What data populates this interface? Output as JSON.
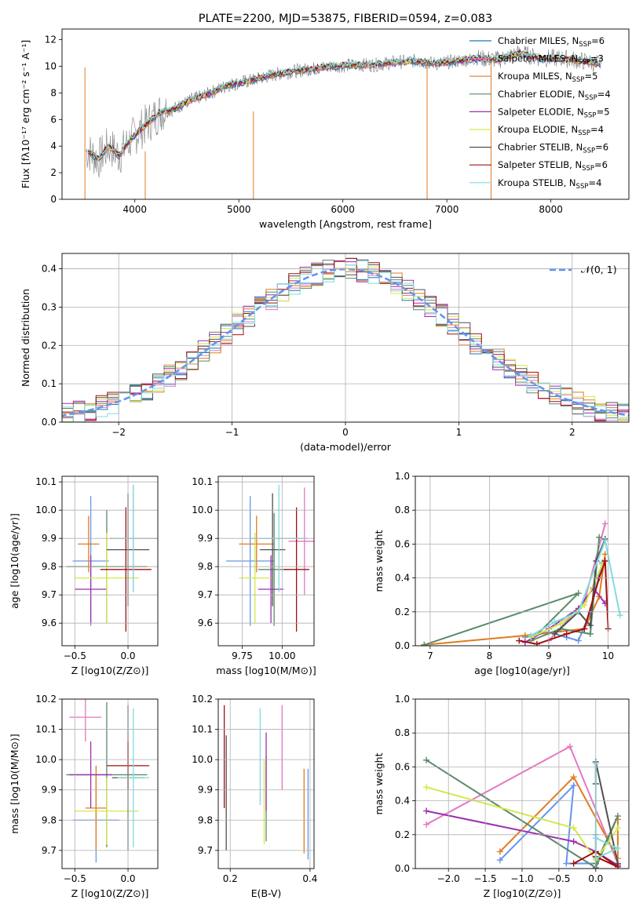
{
  "chart_data": [
    {
      "id": "spectrum",
      "type": "line",
      "title": "PLATE=2200, MJD=53875, FIBERID=0594, z=0.083",
      "xlabel": "wavelength [Angstrom, rest frame]",
      "ylabel": "Flux [fλ10⁻¹⁷ erg cm⁻² s⁻¹ A⁻¹]",
      "xlim": [
        3300,
        8750
      ],
      "ylim": [
        0,
        12.8
      ],
      "xticks": [
        4000,
        5000,
        6000,
        7000,
        8000
      ],
      "yticks": [
        0,
        2,
        4,
        6,
        8,
        10,
        12
      ],
      "legend_position": "top-right",
      "data_color": "#808080",
      "model_x": [
        3550,
        3650,
        3750,
        3850,
        3950,
        4050,
        4150,
        4250,
        4350,
        4450,
        4550,
        4700,
        4900,
        5100,
        5300,
        5500,
        5700,
        5900,
        6100,
        6300,
        6500,
        6700,
        6900,
        7100,
        7300,
        7500,
        7700,
        7900,
        8100,
        8300,
        8450
      ],
      "model_y": [
        3.6,
        3.0,
        4.0,
        3.3,
        4.4,
        5.2,
        5.9,
        6.6,
        6.7,
        7.1,
        7.5,
        7.9,
        8.6,
        8.9,
        9.3,
        9.6,
        9.8,
        10.0,
        10.1,
        10.1,
        10.3,
        10.4,
        10.2,
        10.4,
        10.6,
        10.5,
        11.0,
        10.6,
        10.6,
        10.4,
        10.2
      ],
      "series": [
        {
          "name": "Chabrier MILES, N_SSP=6",
          "name_prefix": "Chabrier MILES, N",
          "name_suffix": "=6",
          "color": "#1f77b4"
        },
        {
          "name": "Salpeter MILES, N_SSP=3",
          "name_prefix": "Salpeter MILES, N",
          "name_suffix": "=3",
          "color": "#e377c2"
        },
        {
          "name": "Kroupa MILES, N_SSP=5",
          "name_prefix": "Kroupa MILES, N",
          "name_suffix": "=5",
          "color": "#e07b20"
        },
        {
          "name": "Chabrier ELODIE, N_SSP=4",
          "name_prefix": "Chabrier ELODIE, N",
          "name_suffix": "=4",
          "color": "#5a8a6a"
        },
        {
          "name": "Salpeter ELODIE, N_SSP=5",
          "name_prefix": "Salpeter ELODIE, N",
          "name_suffix": "=5",
          "color": "#9c2fae"
        },
        {
          "name": "Kroupa ELODIE, N_SSP=4",
          "name_prefix": "Kroupa ELODIE, N",
          "name_suffix": "=4",
          "color": "#d4e84a"
        },
        {
          "name": "Chabrier STELIB, N_SSP=6",
          "name_prefix": "Chabrier STELIB, N",
          "name_suffix": "=6",
          "color": "#505050"
        },
        {
          "name": "Salpeter STELIB, N_SSP=6",
          "name_prefix": "Salpeter STELIB, N",
          "name_suffix": "=6",
          "color": "#a01010"
        },
        {
          "name": "Kroupa STELIB, N_SSP=4",
          "name_prefix": "Kroupa STELIB, N",
          "name_suffix": "=4",
          "color": "#80dce0"
        }
      ]
    },
    {
      "id": "residuals",
      "type": "line",
      "xlabel": "(data-model)/error",
      "ylabel": "Normed distribution",
      "xlim": [
        -2.5,
        2.5
      ],
      "ylim": [
        0,
        0.44
      ],
      "xticks": [
        -2,
        -1,
        0,
        1,
        2
      ],
      "yticks": [
        0.0,
        0.1,
        0.2,
        0.3,
        0.4
      ],
      "legend_label": "𝒩(0, 1)",
      "gaussian_color": "#6495ed",
      "bin_width": 0.1
    },
    {
      "id": "age_vs_Z",
      "type": "scatter",
      "xlabel": "Z [log10(Z/Z⊙)]",
      "ylabel": "age  [log10(age/yr)]",
      "xlim": [
        -0.62,
        0.28
      ],
      "ylim": [
        9.52,
        10.12
      ],
      "xticks": [
        -0.5,
        0.0
      ],
      "yticks": [
        9.6,
        9.7,
        9.8,
        9.9,
        10.0,
        10.1
      ],
      "points": [
        {
          "x": -0.35,
          "xerr": 0.17,
          "y": 9.82,
          "yerr": 0.23,
          "color": "#6495ed"
        },
        {
          "x": 0.05,
          "xerr": 0.22,
          "y": 9.9,
          "yerr": 0.19,
          "color": "#e377c2"
        },
        {
          "x": -0.37,
          "xerr": 0.1,
          "y": 9.88,
          "yerr": 0.1,
          "color": "#e07b20"
        },
        {
          "x": -0.2,
          "xerr": 0.38,
          "y": 9.8,
          "yerr": 0.2,
          "color": "#5a8a6a"
        },
        {
          "x": -0.35,
          "xerr": 0.15,
          "y": 9.72,
          "yerr": 0.12,
          "color": "#9c2fae"
        },
        {
          "x": -0.2,
          "xerr": 0.3,
          "y": 9.76,
          "yerr": 0.16,
          "color": "#d4e84a"
        },
        {
          "x": 0.0,
          "xerr": 0.2,
          "y": 9.86,
          "yerr": 0.2,
          "color": "#505050"
        },
        {
          "x": -0.02,
          "xerr": 0.24,
          "y": 9.79,
          "yerr": 0.22,
          "color": "#a01010"
        },
        {
          "x": 0.05,
          "xerr": 0.2,
          "y": 9.9,
          "yerr": 0.19,
          "color": "#80dce0"
        }
      ]
    },
    {
      "id": "age_vs_mass",
      "type": "scatter",
      "xlabel": "mass [log10(M/M⊙)]",
      "ylabel": "",
      "xlim": [
        9.6,
        10.2
      ],
      "ylim": [
        9.52,
        10.12
      ],
      "xticks": [
        9.75,
        10.0
      ],
      "yticks": [
        9.6,
        9.7,
        9.8,
        9.9,
        10.0,
        10.1
      ],
      "points": [
        {
          "x": 9.8,
          "xerr": 0.15,
          "y": 9.82,
          "yerr": 0.23,
          "color": "#6495ed"
        },
        {
          "x": 10.14,
          "xerr": 0.1,
          "y": 9.89,
          "yerr": 0.19,
          "color": "#e377c2"
        },
        {
          "x": 9.84,
          "xerr": 0.11,
          "y": 9.88,
          "yerr": 0.1,
          "color": "#e07b20"
        },
        {
          "x": 9.95,
          "xerr": 0.1,
          "y": 9.79,
          "yerr": 0.2,
          "color": "#5a8a6a"
        },
        {
          "x": 9.93,
          "xerr": 0.08,
          "y": 9.72,
          "yerr": 0.12,
          "color": "#9c2fae"
        },
        {
          "x": 9.83,
          "xerr": 0.1,
          "y": 9.76,
          "yerr": 0.16,
          "color": "#d4e84a"
        },
        {
          "x": 9.94,
          "xerr": 0.08,
          "y": 9.86,
          "yerr": 0.2,
          "color": "#505050"
        },
        {
          "x": 10.09,
          "xerr": 0.08,
          "y": 9.79,
          "yerr": 0.22,
          "color": "#a01010"
        },
        {
          "x": 9.98,
          "xerr": 0.18,
          "y": 9.9,
          "yerr": 0.19,
          "color": "#80dce0"
        }
      ]
    },
    {
      "id": "weight_vs_age",
      "type": "line",
      "xlabel": "age  [log10(age/yr)]",
      "ylabel": "mass weight",
      "xlim": [
        6.75,
        10.35
      ],
      "ylim": [
        0.0,
        1.0
      ],
      "xticks": [
        7,
        8,
        9,
        10
      ],
      "yticks": [
        0.0,
        0.2,
        0.4,
        0.6,
        0.8,
        1.0
      ],
      "series": [
        {
          "color": "#6495ed",
          "x": [
            8.6,
            9.0,
            9.3,
            9.5,
            9.7,
            9.9
          ],
          "y": [
            0.05,
            0.08,
            0.05,
            0.03,
            0.2,
            0.49
          ]
        },
        {
          "color": "#e377c2",
          "x": [
            9.0,
            9.6,
            9.95
          ],
          "y": [
            0.03,
            0.26,
            0.72
          ]
        },
        {
          "color": "#e07b20",
          "x": [
            6.9,
            8.6,
            9.6,
            9.85,
            9.95
          ],
          "y": [
            0.005,
            0.06,
            0.1,
            0.29,
            0.54
          ]
        },
        {
          "color": "#5a8a6a",
          "x": [
            6.9,
            9.5,
            8.7,
            9.2,
            9.7,
            9.85
          ],
          "y": [
            0.005,
            0.31,
            0.03,
            0.1,
            0.07,
            0.64
          ]
        },
        {
          "color": "#9c2fae",
          "x": [
            8.6,
            9.0,
            9.5,
            9.75,
            9.95
          ],
          "y": [
            0.02,
            0.1,
            0.22,
            0.34,
            0.25
          ]
        },
        {
          "color": "#d4e84a",
          "x": [
            8.7,
            9.2,
            9.6,
            9.9
          ],
          "y": [
            0.05,
            0.13,
            0.24,
            0.48
          ]
        },
        {
          "color": "#505050",
          "x": [
            9.1,
            9.5,
            9.7,
            9.8,
            9.95
          ],
          "y": [
            0.07,
            0.2,
            0.12,
            0.5,
            0.63
          ]
        },
        {
          "color": "#a01010",
          "x": [
            8.5,
            8.8,
            9.3,
            9.6,
            9.85,
            9.95,
            10.0
          ],
          "y": [
            0.03,
            0.01,
            0.07,
            0.1,
            0.4,
            0.5,
            0.1
          ]
        },
        {
          "color": "#80dce0",
          "x": [
            8.7,
            9.1,
            9.5,
            9.95,
            10.2
          ],
          "y": [
            0.06,
            0.14,
            0.2,
            0.62,
            0.18
          ]
        }
      ]
    },
    {
      "id": "mass_vs_Z",
      "type": "scatter",
      "xlabel": "Z [log10(Z/Z⊙)]",
      "ylabel": "mass [log10(M/M⊙)]",
      "xlim": [
        -0.62,
        0.28
      ],
      "ylim": [
        9.64,
        10.2
      ],
      "xticks": [
        -0.5,
        0.0
      ],
      "yticks": [
        9.7,
        9.8,
        9.9,
        10.0,
        10.1,
        10.2
      ],
      "points": [
        {
          "x": -0.3,
          "xerr": 0.22,
          "y": 9.8,
          "yerr": 0.14,
          "color": "#6495ed"
        },
        {
          "x": -0.4,
          "xerr": 0.15,
          "y": 10.14,
          "yerr": 0.08,
          "color": "#e377c2"
        },
        {
          "x": -0.3,
          "xerr": 0.1,
          "y": 9.84,
          "yerr": 0.14,
          "color": "#e07b20"
        },
        {
          "x": -0.2,
          "xerr": 0.38,
          "y": 9.95,
          "yerr": 0.24,
          "color": "#5a8a6a"
        },
        {
          "x": -0.35,
          "xerr": 0.2,
          "y": 9.95,
          "yerr": 0.11,
          "color": "#9c2fae"
        },
        {
          "x": -0.2,
          "xerr": 0.3,
          "y": 9.83,
          "yerr": 0.11,
          "color": "#d4e84a"
        },
        {
          "x": 0.0,
          "xerr": 0.15,
          "y": 9.94,
          "yerr": 0.24,
          "color": "#505050"
        },
        {
          "x": 0.0,
          "xerr": 0.2,
          "y": 9.98,
          "yerr": 0.08,
          "color": "#a01010"
        },
        {
          "x": 0.05,
          "xerr": 0.15,
          "y": 9.94,
          "yerr": 0.23,
          "color": "#80dce0"
        }
      ]
    },
    {
      "id": "mass_vs_ebv",
      "type": "scatter",
      "xlabel": "E(B-V)",
      "ylabel": "",
      "xlim": [
        0.17,
        0.41
      ],
      "ylim": [
        9.64,
        10.2
      ],
      "xticks": [
        0.2,
        0.4
      ],
      "yticks": [
        9.7,
        9.8,
        9.9,
        10.0,
        10.1,
        10.2
      ],
      "points": [
        {
          "x": 0.395,
          "y": 9.82,
          "yerr": 0.15,
          "color": "#6495ed"
        },
        {
          "x": 0.33,
          "y": 10.04,
          "yerr": 0.14,
          "color": "#e377c2"
        },
        {
          "x": 0.385,
          "y": 9.83,
          "yerr": 0.14,
          "color": "#e07b20"
        },
        {
          "x": 0.29,
          "y": 9.87,
          "yerr": 0.14,
          "color": "#5a8a6a"
        },
        {
          "x": 0.29,
          "y": 9.96,
          "yerr": 0.13,
          "color": "#9c2fae"
        },
        {
          "x": 0.285,
          "y": 9.86,
          "yerr": 0.14,
          "color": "#d4e84a"
        },
        {
          "x": 0.19,
          "y": 9.89,
          "yerr": 0.19,
          "color": "#505050"
        },
        {
          "x": 0.185,
          "y": 10.01,
          "yerr": 0.17,
          "color": "#a01010"
        },
        {
          "x": 0.275,
          "y": 10.01,
          "yerr": 0.16,
          "color": "#80dce0"
        }
      ]
    },
    {
      "id": "weight_vs_Z",
      "type": "line",
      "xlabel": "Z [log10(Z/Z⊙)]",
      "ylabel": "mass weight",
      "xlim": [
        -2.45,
        0.45
      ],
      "ylim": [
        0.0,
        1.0
      ],
      "xticks": [
        -2.0,
        -1.5,
        -1.0,
        -0.5,
        0.0
      ],
      "yticks": [
        0.0,
        0.2,
        0.4,
        0.6,
        0.8,
        1.0
      ],
      "series": [
        {
          "color": "#6495ed",
          "x": [
            -1.3,
            -0.3,
            -0.4,
            0.0,
            0.0
          ],
          "y": [
            0.05,
            0.49,
            0.03,
            0.03,
            0.2
          ]
        },
        {
          "color": "#e377c2",
          "x": [
            -2.3,
            -0.35,
            0.3
          ],
          "y": [
            0.26,
            0.72,
            0.03
          ]
        },
        {
          "color": "#e07b20",
          "x": [
            -1.3,
            -0.3,
            0.3,
            0.3
          ],
          "y": [
            0.1,
            0.54,
            0.06,
            0.29
          ]
        },
        {
          "color": "#5a8a6a",
          "x": [
            -2.3,
            0.0,
            0.3,
            0.0
          ],
          "y": [
            0.64,
            0.005,
            0.31,
            0.03
          ]
        },
        {
          "color": "#9c2fae",
          "x": [
            -2.3,
            -0.3,
            0.0,
            0.3
          ],
          "y": [
            0.34,
            0.16,
            0.1,
            0.02
          ]
        },
        {
          "color": "#d4e84a",
          "x": [
            -2.3,
            -0.3,
            0.0,
            0.3
          ],
          "y": [
            0.48,
            0.24,
            0.05,
            0.24
          ]
        },
        {
          "color": "#505050",
          "x": [
            0.0,
            0.0,
            0.3
          ],
          "y": [
            0.5,
            0.63,
            0.03
          ]
        },
        {
          "color": "#a01010",
          "x": [
            -0.3,
            0.0,
            0.3,
            0.0
          ],
          "y": [
            0.03,
            0.1,
            0.01,
            0.07
          ]
        },
        {
          "color": "#80dce0",
          "x": [
            0.0,
            0.0,
            0.3,
            0.0
          ],
          "y": [
            0.62,
            0.06,
            0.12,
            0.18
          ]
        }
      ]
    }
  ]
}
